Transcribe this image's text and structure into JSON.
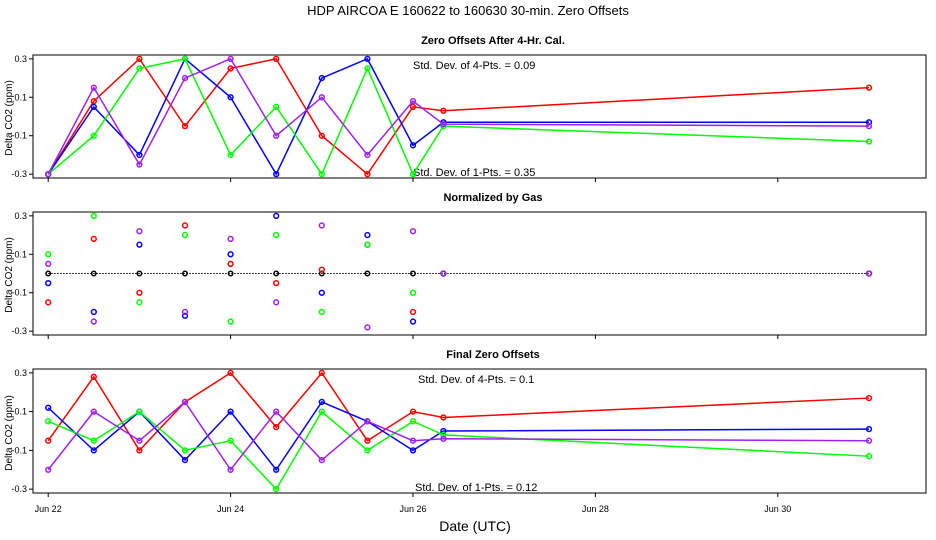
{
  "figure": {
    "title": "HDP   AIRCOA E   160622 to 160630   30-min. Zero Offsets",
    "xlabel": "Date (UTC)",
    "x_ticks": [
      "Jun 22",
      "Jun 24",
      "Jun 26",
      "Jun 28",
      "Jun 30"
    ]
  },
  "panels": [
    {
      "title": "Zero Offsets After 4-Hr. Cal.",
      "ylabel": "Delta CO2 (ppm)",
      "y_ticks": [
        "0.3",
        "0.1",
        "-0.1",
        "-0.3"
      ],
      "annotation_top": "Std. Dev. of 4-Pts. =  0.09",
      "annotation_bottom": "Std. Dev. of 1-Pts. =  0.35"
    },
    {
      "title": "Normalized by Gas",
      "ylabel": "Delta CO2 (ppm)",
      "y_ticks": [
        "0.3",
        "0.1",
        "-0.1",
        "-0.3"
      ],
      "annotation_top": "",
      "annotation_bottom": ""
    },
    {
      "title": "Final Zero Offsets",
      "ylabel": "Delta CO2 (ppm)",
      "y_ticks": [
        "0.3",
        "0.1",
        "-0.1",
        "-0.3"
      ],
      "annotation_top": "Std. Dev. of 4-Pts. =  0.1",
      "annotation_bottom": "Std. Dev. of 1-Pts. =  0.12"
    }
  ],
  "chart_data": [
    {
      "type": "line",
      "title": "Zero Offsets After 4-Hr. Cal.",
      "ylabel": "Delta CO2 (ppm)",
      "ylim": [
        -0.32,
        0.32
      ],
      "xlim": [
        "2016-06-21 20:00",
        "2016-07-01 15:00"
      ],
      "x": [
        "2016-06-22 00:00",
        "2016-06-22 12:00",
        "2016-06-23 00:00",
        "2016-06-23 12:00",
        "2016-06-24 00:00",
        "2016-06-24 12:00",
        "2016-06-25 00:00",
        "2016-06-25 12:00",
        "2016-06-26 00:00",
        "2016-06-26 08:00",
        "2016-07-01 00:00"
      ],
      "series": [
        {
          "color": "#ff0000",
          "values": [
            -0.3,
            0.08,
            0.3,
            -0.05,
            0.25,
            0.3,
            -0.1,
            -0.3,
            0.05,
            0.03,
            0.15
          ]
        },
        {
          "color": "#0000ff",
          "values": [
            -0.3,
            0.05,
            -0.2,
            0.3,
            0.1,
            -0.3,
            0.2,
            0.3,
            -0.15,
            -0.03,
            -0.03
          ]
        },
        {
          "color": "#00ff00",
          "values": [
            -0.3,
            -0.1,
            0.25,
            0.3,
            -0.2,
            0.05,
            -0.3,
            0.25,
            -0.3,
            -0.05,
            -0.13
          ]
        },
        {
          "color": "#a020f0",
          "values": [
            -0.3,
            0.15,
            -0.25,
            0.2,
            0.3,
            -0.1,
            0.1,
            -0.2,
            0.08,
            -0.04,
            -0.05
          ]
        }
      ]
    },
    {
      "type": "scatter",
      "title": "Normalized by Gas",
      "ylabel": "Delta CO2 (ppm)",
      "ylim": [
        -0.32,
        0.32
      ],
      "xlim": [
        "2016-06-21 20:00",
        "2016-07-01 15:00"
      ],
      "reference_line": {
        "color": "#000000",
        "style": "dotted",
        "values": [
          0.0,
          0.0,
          0.0,
          0.0,
          0.0,
          0.0,
          0.0,
          0.0,
          0.0,
          0.0,
          0.0
        ]
      },
      "x": [
        "2016-06-22 00:00",
        "2016-06-22 12:00",
        "2016-06-23 00:00",
        "2016-06-23 12:00",
        "2016-06-24 00:00",
        "2016-06-24 12:00",
        "2016-06-25 00:00",
        "2016-06-25 12:00",
        "2016-06-26 00:00",
        "2016-06-26 08:00",
        "2016-07-01 00:00"
      ],
      "series": [
        {
          "color": "#ff0000",
          "values": [
            -0.15,
            0.18,
            -0.1,
            0.25,
            0.05,
            -0.05,
            0.02,
            0.15,
            -0.2,
            0.0,
            0.0
          ]
        },
        {
          "color": "#0000ff",
          "values": [
            -0.05,
            -0.2,
            0.15,
            -0.22,
            0.1,
            0.3,
            -0.1,
            0.2,
            -0.25,
            0.0,
            0.0
          ]
        },
        {
          "color": "#00ff00",
          "values": [
            0.1,
            0.3,
            -0.15,
            0.2,
            -0.25,
            0.2,
            -0.2,
            0.15,
            -0.1,
            0.0,
            0.0
          ]
        },
        {
          "color": "#a020f0",
          "values": [
            0.05,
            -0.25,
            0.22,
            -0.2,
            0.18,
            -0.15,
            0.25,
            -0.28,
            0.22,
            0.0,
            0.0
          ]
        }
      ]
    },
    {
      "type": "line",
      "title": "Final Zero Offsets",
      "ylabel": "Delta CO2 (ppm)",
      "ylim": [
        -0.32,
        0.32
      ],
      "xlim": [
        "2016-06-21 20:00",
        "2016-07-01 15:00"
      ],
      "x": [
        "2016-06-22 00:00",
        "2016-06-22 12:00",
        "2016-06-23 00:00",
        "2016-06-23 12:00",
        "2016-06-24 00:00",
        "2016-06-24 12:00",
        "2016-06-25 00:00",
        "2016-06-25 12:00",
        "2016-06-26 00:00",
        "2016-06-26 08:00",
        "2016-07-01 00:00"
      ],
      "series": [
        {
          "color": "#ff0000",
          "values": [
            -0.05,
            0.28,
            -0.1,
            0.15,
            0.3,
            0.02,
            0.3,
            -0.05,
            0.1,
            0.07,
            0.17
          ]
        },
        {
          "color": "#0000ff",
          "values": [
            0.12,
            -0.1,
            0.1,
            -0.15,
            0.1,
            -0.2,
            0.15,
            0.05,
            -0.1,
            0.0,
            0.01
          ]
        },
        {
          "color": "#00ff00",
          "values": [
            0.05,
            -0.05,
            0.1,
            -0.1,
            -0.05,
            -0.3,
            0.1,
            -0.1,
            0.05,
            -0.02,
            -0.13
          ]
        },
        {
          "color": "#a020f0",
          "values": [
            -0.2,
            0.1,
            -0.05,
            0.15,
            -0.2,
            0.1,
            -0.15,
            0.05,
            -0.05,
            -0.04,
            -0.05
          ]
        }
      ]
    }
  ]
}
